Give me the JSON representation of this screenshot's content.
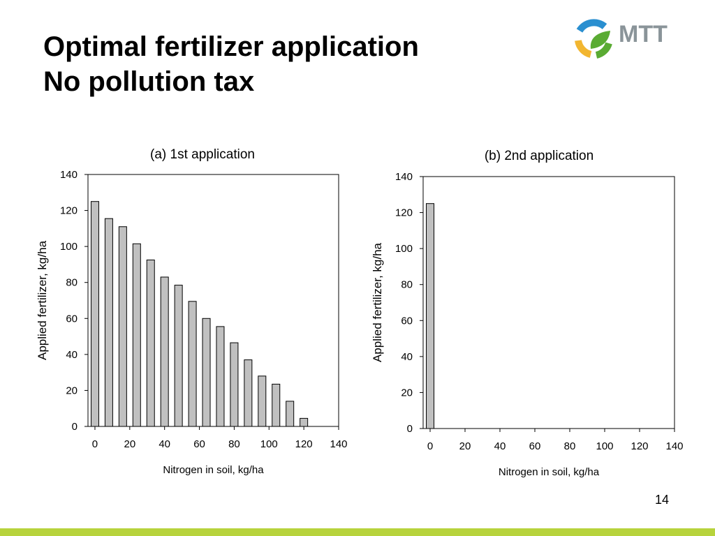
{
  "slide": {
    "title_line1": "Optimal fertilizer application",
    "title_line2": "No pollution tax",
    "page_number": "14",
    "logo": {
      "icon": "mtt-logo-icon",
      "text": "MTT",
      "colors": {
        "blue": "#2a8fd0",
        "green": "#5aab33",
        "yellow": "#f2b630",
        "text": "#8a9499"
      }
    },
    "bottom_bar_color": "#b7d33c"
  },
  "chart_data": [
    {
      "type": "bar",
      "title": "(a) 1st application",
      "xlabel": "Nitrogen in soil, kg/ha",
      "ylabel": "Applied fertilizer, kg/ha",
      "x": [
        0,
        8,
        16,
        24,
        32,
        40,
        48,
        56,
        64,
        72,
        80,
        88,
        96,
        104,
        112,
        120
      ],
      "values": [
        125,
        115.5,
        111,
        101.5,
        92.5,
        83,
        78.5,
        69.5,
        60,
        55.5,
        46.5,
        37,
        28,
        23.5,
        14,
        4.5
      ],
      "xlim": [
        -4,
        140
      ],
      "ylim": [
        0,
        140
      ],
      "xticks": [
        "0",
        "20",
        "40",
        "60",
        "80",
        "100",
        "120",
        "140"
      ],
      "yticks": [
        "0",
        "20",
        "40",
        "60",
        "80",
        "100",
        "120",
        "140"
      ],
      "bar_color": "#c0c0c0",
      "grid": false
    },
    {
      "type": "bar",
      "title": "(b) 2nd application",
      "xlabel": "Nitrogen in soil, kg/ha",
      "ylabel": "Applied fertilizer, kg/ha",
      "x": [
        0,
        8,
        16,
        24,
        32,
        40,
        48,
        56,
        64,
        72,
        80,
        88,
        96,
        104,
        112,
        120,
        128,
        136
      ],
      "values": [
        125,
        0,
        0,
        0,
        0,
        0,
        0,
        0,
        0,
        0,
        0,
        0,
        0,
        0,
        0,
        0,
        0,
        0
      ],
      "xlim": [
        -4,
        140
      ],
      "ylim": [
        0,
        140
      ],
      "xticks": [
        "0",
        "20",
        "40",
        "60",
        "80",
        "100",
        "120",
        "140"
      ],
      "yticks": [
        "0",
        "20",
        "40",
        "60",
        "80",
        "100",
        "120",
        "140"
      ],
      "bar_color": "#c0c0c0",
      "grid": false
    }
  ]
}
